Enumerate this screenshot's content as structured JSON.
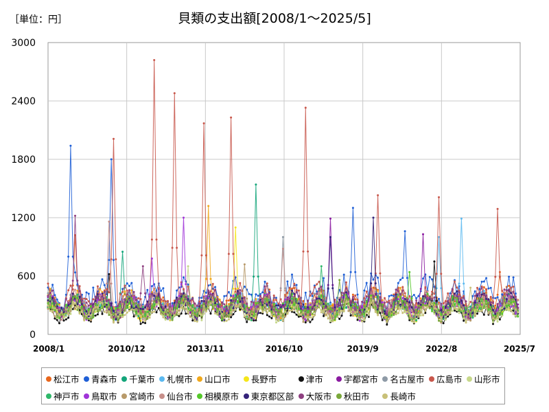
{
  "unit_label": "［単位：円］",
  "chart_data": {
    "type": "line",
    "title": "貝類の支出額[2008/1～2025/5]",
    "ylim": [
      0,
      3000
    ],
    "y_ticks": [
      "0",
      "600",
      "1200",
      "1800",
      "2400",
      "3000"
    ],
    "x_ticks": [
      "2008/1",
      "2010/12",
      "2013/11",
      "2016/10",
      "2019/9",
      "2022/8",
      "2025/7"
    ],
    "grid": true,
    "legend_position": "bottom",
    "series": [
      {
        "name": "松江市",
        "color": "#e8661c",
        "base": 330,
        "peaks": [
          [
            0.06,
            1020
          ],
          [
            0.96,
            640
          ]
        ]
      },
      {
        "name": "青森市",
        "color": "#1f5fd6",
        "base": 420,
        "peaks": [
          [
            0.05,
            1940
          ],
          [
            0.135,
            1800
          ],
          [
            0.65,
            1300
          ],
          [
            0.76,
            1060
          ]
        ]
      },
      {
        "name": "千葉市",
        "color": "#13a57a",
        "base": 280,
        "peaks": [
          [
            0.16,
            850
          ],
          [
            0.44,
            1540
          ]
        ]
      },
      {
        "name": "札幌市",
        "color": "#5bb9f0",
        "base": 300,
        "peaks": [
          [
            0.88,
            1190
          ],
          [
            0.83,
            1000
          ]
        ]
      },
      {
        "name": "山口市",
        "color": "#f0a81c",
        "base": 320,
        "peaks": [
          [
            0.34,
            1320
          ]
        ]
      },
      {
        "name": "長野市",
        "color": "#f5e61a",
        "base": 260,
        "peaks": [
          [
            0.4,
            1100
          ]
        ]
      },
      {
        "name": "津市",
        "color": "#111111",
        "base": 210,
        "peaks": [
          [
            0.13,
            620
          ],
          [
            0.82,
            750
          ]
        ]
      },
      {
        "name": "宇都宮市",
        "color": "#8a1aa0",
        "base": 280,
        "peaks": [
          [
            0.6,
            1190
          ],
          [
            0.8,
            1030
          ]
        ]
      },
      {
        "name": "名古屋市",
        "color": "#8e9aa6",
        "base": 300,
        "peaks": [
          [
            0.5,
            1000
          ]
        ]
      },
      {
        "name": "広島市",
        "color": "#c8574b",
        "base": 360,
        "peaks": [
          [
            0.138,
            2010
          ],
          [
            0.225,
            2820
          ],
          [
            0.27,
            2480
          ],
          [
            0.33,
            2170
          ],
          [
            0.39,
            2230
          ],
          [
            0.55,
            2330
          ],
          [
            0.7,
            1430
          ],
          [
            0.83,
            1410
          ],
          [
            0.955,
            1290
          ]
        ]
      },
      {
        "name": "山形市",
        "color": "#c7d88a",
        "base": 240,
        "peaks": [
          [
            0.3,
            700
          ]
        ]
      },
      {
        "name": "神戸市",
        "color": "#2fb86a",
        "base": 280,
        "peaks": [
          [
            0.58,
            700
          ]
        ]
      },
      {
        "name": "鳥取市",
        "color": "#a034d8",
        "base": 290,
        "peaks": [
          [
            0.29,
            1200
          ],
          [
            0.22,
            780
          ]
        ]
      },
      {
        "name": "宮崎市",
        "color": "#b89a6a",
        "base": 250,
        "peaks": [
          [
            0.42,
            720
          ]
        ]
      },
      {
        "name": "仙台市",
        "color": "#c78f8a",
        "base": 310,
        "peaks": [
          [
            0.13,
            1160
          ],
          [
            0.5,
            880
          ]
        ]
      },
      {
        "name": "相模原市",
        "color": "#55c82a",
        "base": 280,
        "peaks": [
          [
            0.77,
            640
          ]
        ]
      },
      {
        "name": "東京都区部",
        "color": "#34237a",
        "base": 300,
        "peaks": [
          [
            0.6,
            1000
          ],
          [
            0.69,
            1200
          ]
        ]
      },
      {
        "name": "大阪市",
        "color": "#8e3f80",
        "base": 330,
        "peaks": [
          [
            0.06,
            1220
          ],
          [
            0.2,
            700
          ]
        ]
      },
      {
        "name": "秋田市",
        "color": "#7aa83a",
        "base": 260,
        "peaks": [
          [
            0.62,
            560
          ]
        ]
      },
      {
        "name": "長崎市",
        "color": "#c8c078",
        "base": 230,
        "peaks": [
          [
            0.9,
            480
          ]
        ]
      }
    ]
  }
}
